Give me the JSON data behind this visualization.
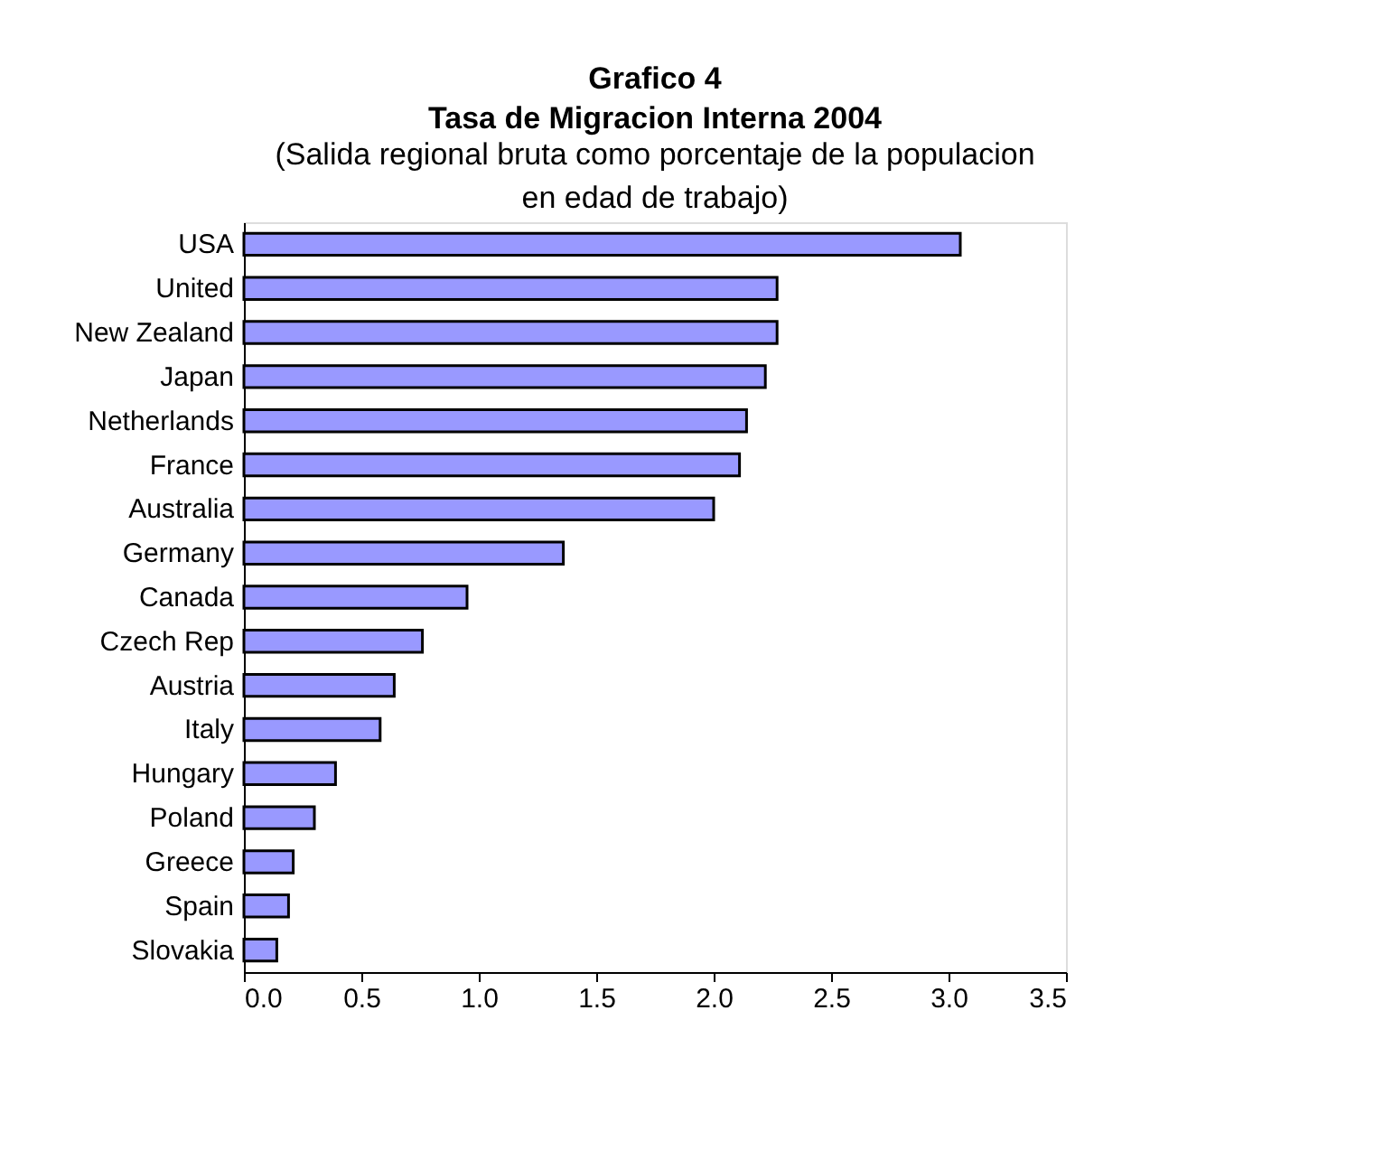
{
  "chart_data": {
    "type": "bar",
    "orientation": "horizontal",
    "title": "Grafico 4",
    "subtitle": [
      "Tasa de Migracion Interna 2004",
      "(Salida regional bruta como porcentaje de la populacion",
      "en edad de trabajo)"
    ],
    "categories": [
      "USA",
      "United",
      "New Zealand",
      "Japan",
      "Netherlands",
      "France",
      "Australia",
      "Germany",
      "Canada",
      "Czech Rep",
      "Austria",
      "Italy",
      "Hungary",
      "Poland",
      "Greece",
      "Spain",
      "Slovakia"
    ],
    "values": [
      3.05,
      2.27,
      2.27,
      2.22,
      2.14,
      2.11,
      2.0,
      1.36,
      0.95,
      0.76,
      0.64,
      0.58,
      0.39,
      0.3,
      0.21,
      0.19,
      0.14
    ],
    "color": "#9999ff",
    "xlim": [
      0,
      3.5
    ],
    "xticks": [
      {
        "value": 0,
        "label": "0.0"
      },
      0.5,
      {
        "value": 1,
        "label": "1.0"
      },
      1.5,
      {
        "value": 2,
        "label": "2.0"
      },
      2.5,
      {
        "value": 3,
        "label": "3.0"
      },
      3.5
    ],
    "grid": false
  }
}
